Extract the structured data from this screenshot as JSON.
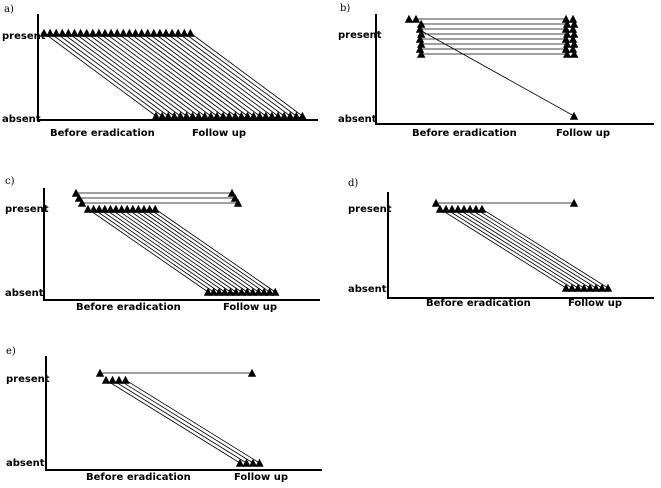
{
  "y_labels": {
    "present": "present",
    "absent": "absent"
  },
  "x_labels": {
    "before": "Before eradication",
    "after": "Follow up"
  },
  "panels": [
    {
      "id": "a",
      "label": "a)",
      "stays_present": 0,
      "stays_absent": 0,
      "gained": 0,
      "lost": 25
    },
    {
      "id": "b",
      "label": "b)",
      "stays_present": 8,
      "stays_absent": 0,
      "gained": 0,
      "lost": 1
    },
    {
      "id": "c",
      "label": "c)",
      "stays_present": 3,
      "stays_absent": 0,
      "gained": 0,
      "lost": 13
    },
    {
      "id": "d",
      "label": "d)",
      "stays_present": 1,
      "stays_absent": 0,
      "gained": 0,
      "lost": 8
    },
    {
      "id": "e",
      "label": "e)",
      "stays_present": 1,
      "stays_absent": 0,
      "gained": 0,
      "lost": 4
    }
  ]
}
